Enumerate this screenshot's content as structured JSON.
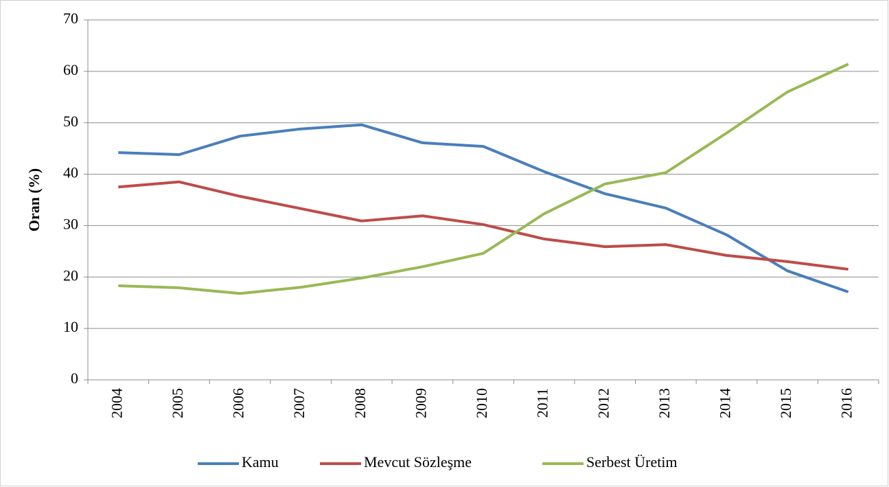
{
  "chart_data": {
    "type": "line",
    "ylabel": "Oran (%)",
    "categories": [
      "2004",
      "2005",
      "2006",
      "2007",
      "2008",
      "2009",
      "2010",
      "2011",
      "2012",
      "2013",
      "2014",
      "2015",
      "2016"
    ],
    "series": [
      {
        "name": "Kamu",
        "color": "#4a7ebb",
        "values": [
          44.2,
          43.8,
          47.4,
          48.8,
          49.6,
          46.1,
          45.4,
          40.5,
          36.2,
          33.4,
          28.2,
          21.2,
          17.1
        ]
      },
      {
        "name": "Mevcut Sözleşme",
        "color": "#be4b48",
        "values": [
          37.5,
          38.5,
          35.7,
          33.3,
          30.9,
          31.9,
          30.2,
          27.4,
          25.9,
          26.3,
          24.2,
          23.0,
          21.5
        ]
      },
      {
        "name": "Serbest Üretim",
        "color": "#98b954",
        "values": [
          18.3,
          17.9,
          16.8,
          18.0,
          19.8,
          22.0,
          24.6,
          32.3,
          38.1,
          40.3,
          48.0,
          56.0,
          61.4
        ]
      }
    ],
    "ylim": [
      0,
      70
    ],
    "yticks": [
      0,
      10,
      20,
      30,
      40,
      50,
      60,
      70
    ],
    "grid": true,
    "legend": "bottom"
  }
}
